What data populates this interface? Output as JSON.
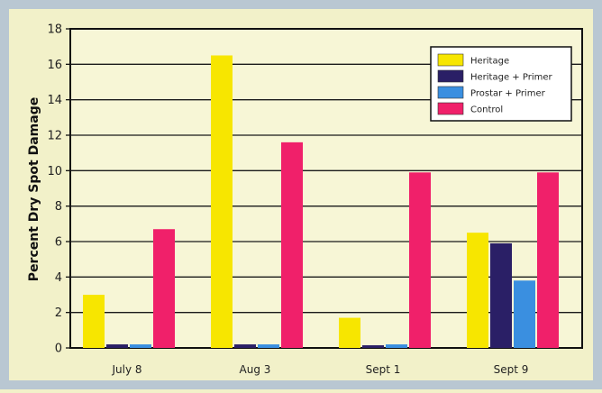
{
  "chart_data": {
    "type": "bar",
    "title": "",
    "xlabel": "",
    "ylabel": "Percent Dry Spot Damage",
    "ylim": [
      0,
      18
    ],
    "yticks": [
      0,
      2,
      4,
      6,
      8,
      10,
      12,
      14,
      16,
      18
    ],
    "grid": true,
    "legend_position": "top-right",
    "categories": [
      "July 8",
      "Aug 3",
      "Sept 1",
      "Sept 9"
    ],
    "series": [
      {
        "name": "Heritage",
        "color": "#f7e600",
        "values": [
          3.0,
          16.5,
          1.7,
          6.5
        ]
      },
      {
        "name": "Heritage + Primer",
        "color": "#2a1f66",
        "values": [
          0.2,
          0.2,
          0.15,
          5.9
        ]
      },
      {
        "name": "Prostar + Primer",
        "color": "#3a8fe0",
        "values": [
          0.2,
          0.2,
          0.2,
          3.8
        ]
      },
      {
        "name": "Control",
        "color": "#f0206a",
        "values": [
          6.7,
          11.6,
          9.9,
          9.9
        ]
      }
    ]
  },
  "colors": {
    "background": "#f2f1c9",
    "plot_background": "#f7f6d6",
    "grid": "#1a1a1a",
    "frame": "#b9c7d2"
  }
}
